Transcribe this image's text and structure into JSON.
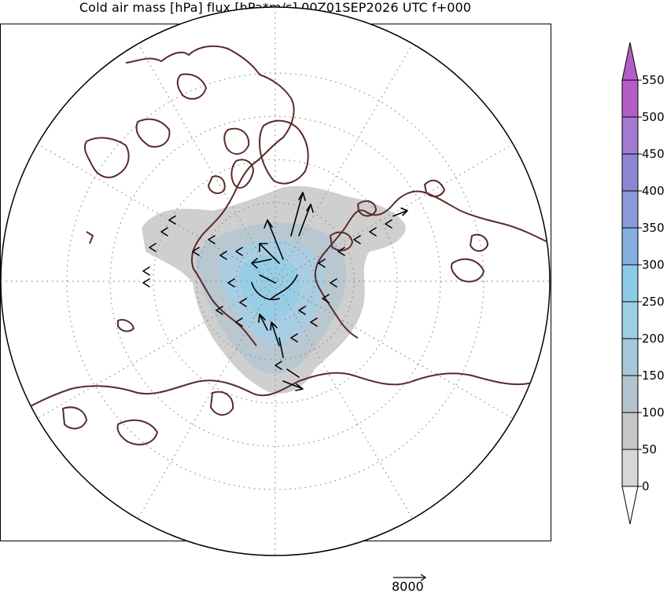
{
  "title": "Cold air mass [hPa] flux [hPa*m/s] 00Z01SEP2026 UTC f+000",
  "colorbar": {
    "labels": [
      "550",
      "500",
      "450",
      "400",
      "350",
      "300",
      "250",
      "200",
      "150",
      "100",
      "50",
      "0"
    ],
    "colors": [
      "#b35ec4",
      "#a27bd0",
      "#8f86d3",
      "#8a9ad6",
      "#84afde",
      "#8ccbe6",
      "#9bcfe3",
      "#a6c6d9",
      "#b3c4cf",
      "#c6c6c6",
      "#d7d7d7"
    ],
    "extend": "both"
  },
  "reference_vector": {
    "label": "8000"
  },
  "colors": {
    "coastline": "#5b2a2a",
    "grid": "#8a8a8a",
    "vectors": "#000000"
  }
}
